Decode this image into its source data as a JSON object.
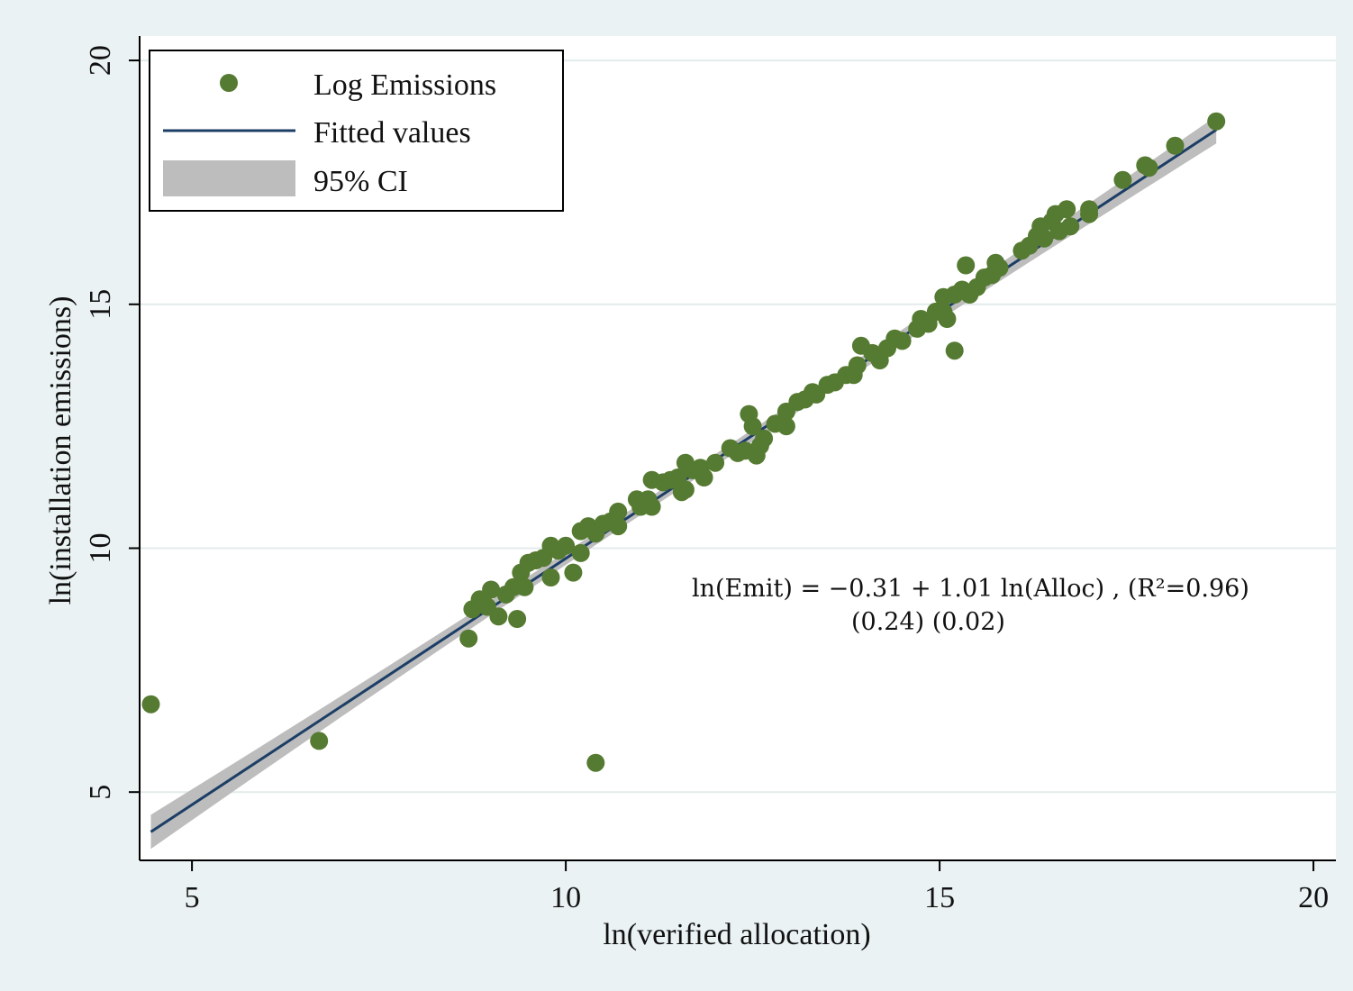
{
  "chart_data": {
    "type": "scatter",
    "title": "",
    "xlabel": "ln(verified allocation)",
    "ylabel": "ln(installation emissions)",
    "xlim": [
      4.3,
      20.3
    ],
    "ylim": [
      3.6,
      20.5
    ],
    "xticks": [
      5,
      10,
      15,
      20
    ],
    "xtick_labels": [
      "5",
      "10",
      "15",
      "20"
    ],
    "yticks": [
      5,
      10,
      15,
      20
    ],
    "ytick_labels": [
      "5",
      "10",
      "15",
      "20"
    ],
    "grid": "horizontal",
    "legend": {
      "position": "top-left",
      "entries": [
        "Log Emissions",
        "Fitted values",
        "95% CI"
      ]
    },
    "colors": {
      "points": "#557a31",
      "fit_line": "#1c3e66",
      "ci_band": "#bdbdbd",
      "background": "#eaf2f3",
      "plot_area": "#ffffff",
      "grid": "#e3ebec"
    },
    "fit": {
      "intercept": -0.31,
      "slope": 1.01,
      "x_range": [
        4.45,
        18.7
      ],
      "ci_halfwidth": [
        0.35,
        0.12,
        0.28
      ]
    },
    "annotation": {
      "equation": "ln(Emit) = −0.31 + 1.01 ln(Alloc) , (R²=0.96)",
      "std_errors": "(0.24)   (0.02)"
    },
    "series": [
      {
        "name": "Log Emissions",
        "points": [
          [
            4.45,
            6.8
          ],
          [
            6.7,
            6.05
          ],
          [
            10.4,
            5.6
          ],
          [
            8.7,
            8.15
          ],
          [
            8.75,
            8.75
          ],
          [
            8.85,
            8.95
          ],
          [
            8.95,
            8.8
          ],
          [
            9.0,
            9.15
          ],
          [
            9.1,
            8.6
          ],
          [
            9.2,
            9.05
          ],
          [
            9.3,
            9.2
          ],
          [
            9.35,
            8.55
          ],
          [
            9.4,
            9.5
          ],
          [
            9.45,
            9.2
          ],
          [
            9.5,
            9.7
          ],
          [
            9.6,
            9.75
          ],
          [
            9.7,
            9.8
          ],
          [
            9.8,
            10.05
          ],
          [
            9.8,
            9.4
          ],
          [
            9.9,
            9.95
          ],
          [
            10.0,
            10.05
          ],
          [
            10.1,
            9.5
          ],
          [
            10.2,
            10.35
          ],
          [
            10.2,
            9.9
          ],
          [
            10.3,
            10.45
          ],
          [
            10.4,
            10.3
          ],
          [
            10.5,
            10.5
          ],
          [
            10.6,
            10.55
          ],
          [
            10.7,
            10.45
          ],
          [
            10.7,
            10.75
          ],
          [
            10.95,
            11.0
          ],
          [
            11.0,
            10.85
          ],
          [
            11.1,
            11.0
          ],
          [
            11.15,
            10.85
          ],
          [
            11.15,
            11.4
          ],
          [
            11.3,
            11.35
          ],
          [
            11.4,
            11.4
          ],
          [
            11.5,
            11.45
          ],
          [
            11.55,
            11.15
          ],
          [
            11.6,
            11.75
          ],
          [
            11.6,
            11.2
          ],
          [
            11.7,
            11.6
          ],
          [
            11.8,
            11.65
          ],
          [
            11.85,
            11.45
          ],
          [
            12.0,
            11.75
          ],
          [
            12.2,
            12.05
          ],
          [
            12.3,
            11.95
          ],
          [
            12.4,
            12.0
          ],
          [
            12.45,
            12.75
          ],
          [
            12.5,
            12.5
          ],
          [
            12.55,
            11.9
          ],
          [
            12.6,
            12.1
          ],
          [
            12.65,
            12.25
          ],
          [
            12.8,
            12.55
          ],
          [
            12.95,
            12.5
          ],
          [
            12.95,
            12.8
          ],
          [
            13.1,
            13.0
          ],
          [
            13.2,
            13.05
          ],
          [
            13.3,
            13.2
          ],
          [
            13.35,
            13.15
          ],
          [
            13.5,
            13.35
          ],
          [
            13.6,
            13.4
          ],
          [
            13.75,
            13.55
          ],
          [
            13.85,
            13.55
          ],
          [
            13.9,
            13.75
          ],
          [
            13.95,
            14.15
          ],
          [
            14.1,
            14.0
          ],
          [
            14.2,
            13.85
          ],
          [
            14.3,
            14.1
          ],
          [
            14.4,
            14.3
          ],
          [
            14.5,
            14.25
          ],
          [
            14.7,
            14.5
          ],
          [
            14.75,
            14.7
          ],
          [
            14.85,
            14.6
          ],
          [
            14.95,
            14.85
          ],
          [
            15.05,
            14.85
          ],
          [
            15.05,
            15.15
          ],
          [
            15.1,
            14.7
          ],
          [
            15.2,
            15.2
          ],
          [
            15.2,
            14.05
          ],
          [
            15.3,
            15.3
          ],
          [
            15.35,
            15.8
          ],
          [
            15.4,
            15.2
          ],
          [
            15.5,
            15.35
          ],
          [
            15.6,
            15.55
          ],
          [
            15.7,
            15.6
          ],
          [
            15.75,
            15.85
          ],
          [
            15.8,
            15.75
          ],
          [
            16.1,
            16.1
          ],
          [
            16.2,
            16.2
          ],
          [
            16.3,
            16.4
          ],
          [
            16.35,
            16.6
          ],
          [
            16.4,
            16.35
          ],
          [
            16.5,
            16.7
          ],
          [
            16.55,
            16.85
          ],
          [
            16.6,
            16.5
          ],
          [
            16.7,
            16.95
          ],
          [
            16.75,
            16.6
          ],
          [
            17.0,
            16.85
          ],
          [
            17.0,
            16.95
          ],
          [
            17.45,
            17.55
          ],
          [
            17.75,
            17.85
          ],
          [
            17.8,
            17.8
          ],
          [
            18.15,
            18.25
          ],
          [
            18.7,
            18.75
          ]
        ]
      }
    ]
  }
}
